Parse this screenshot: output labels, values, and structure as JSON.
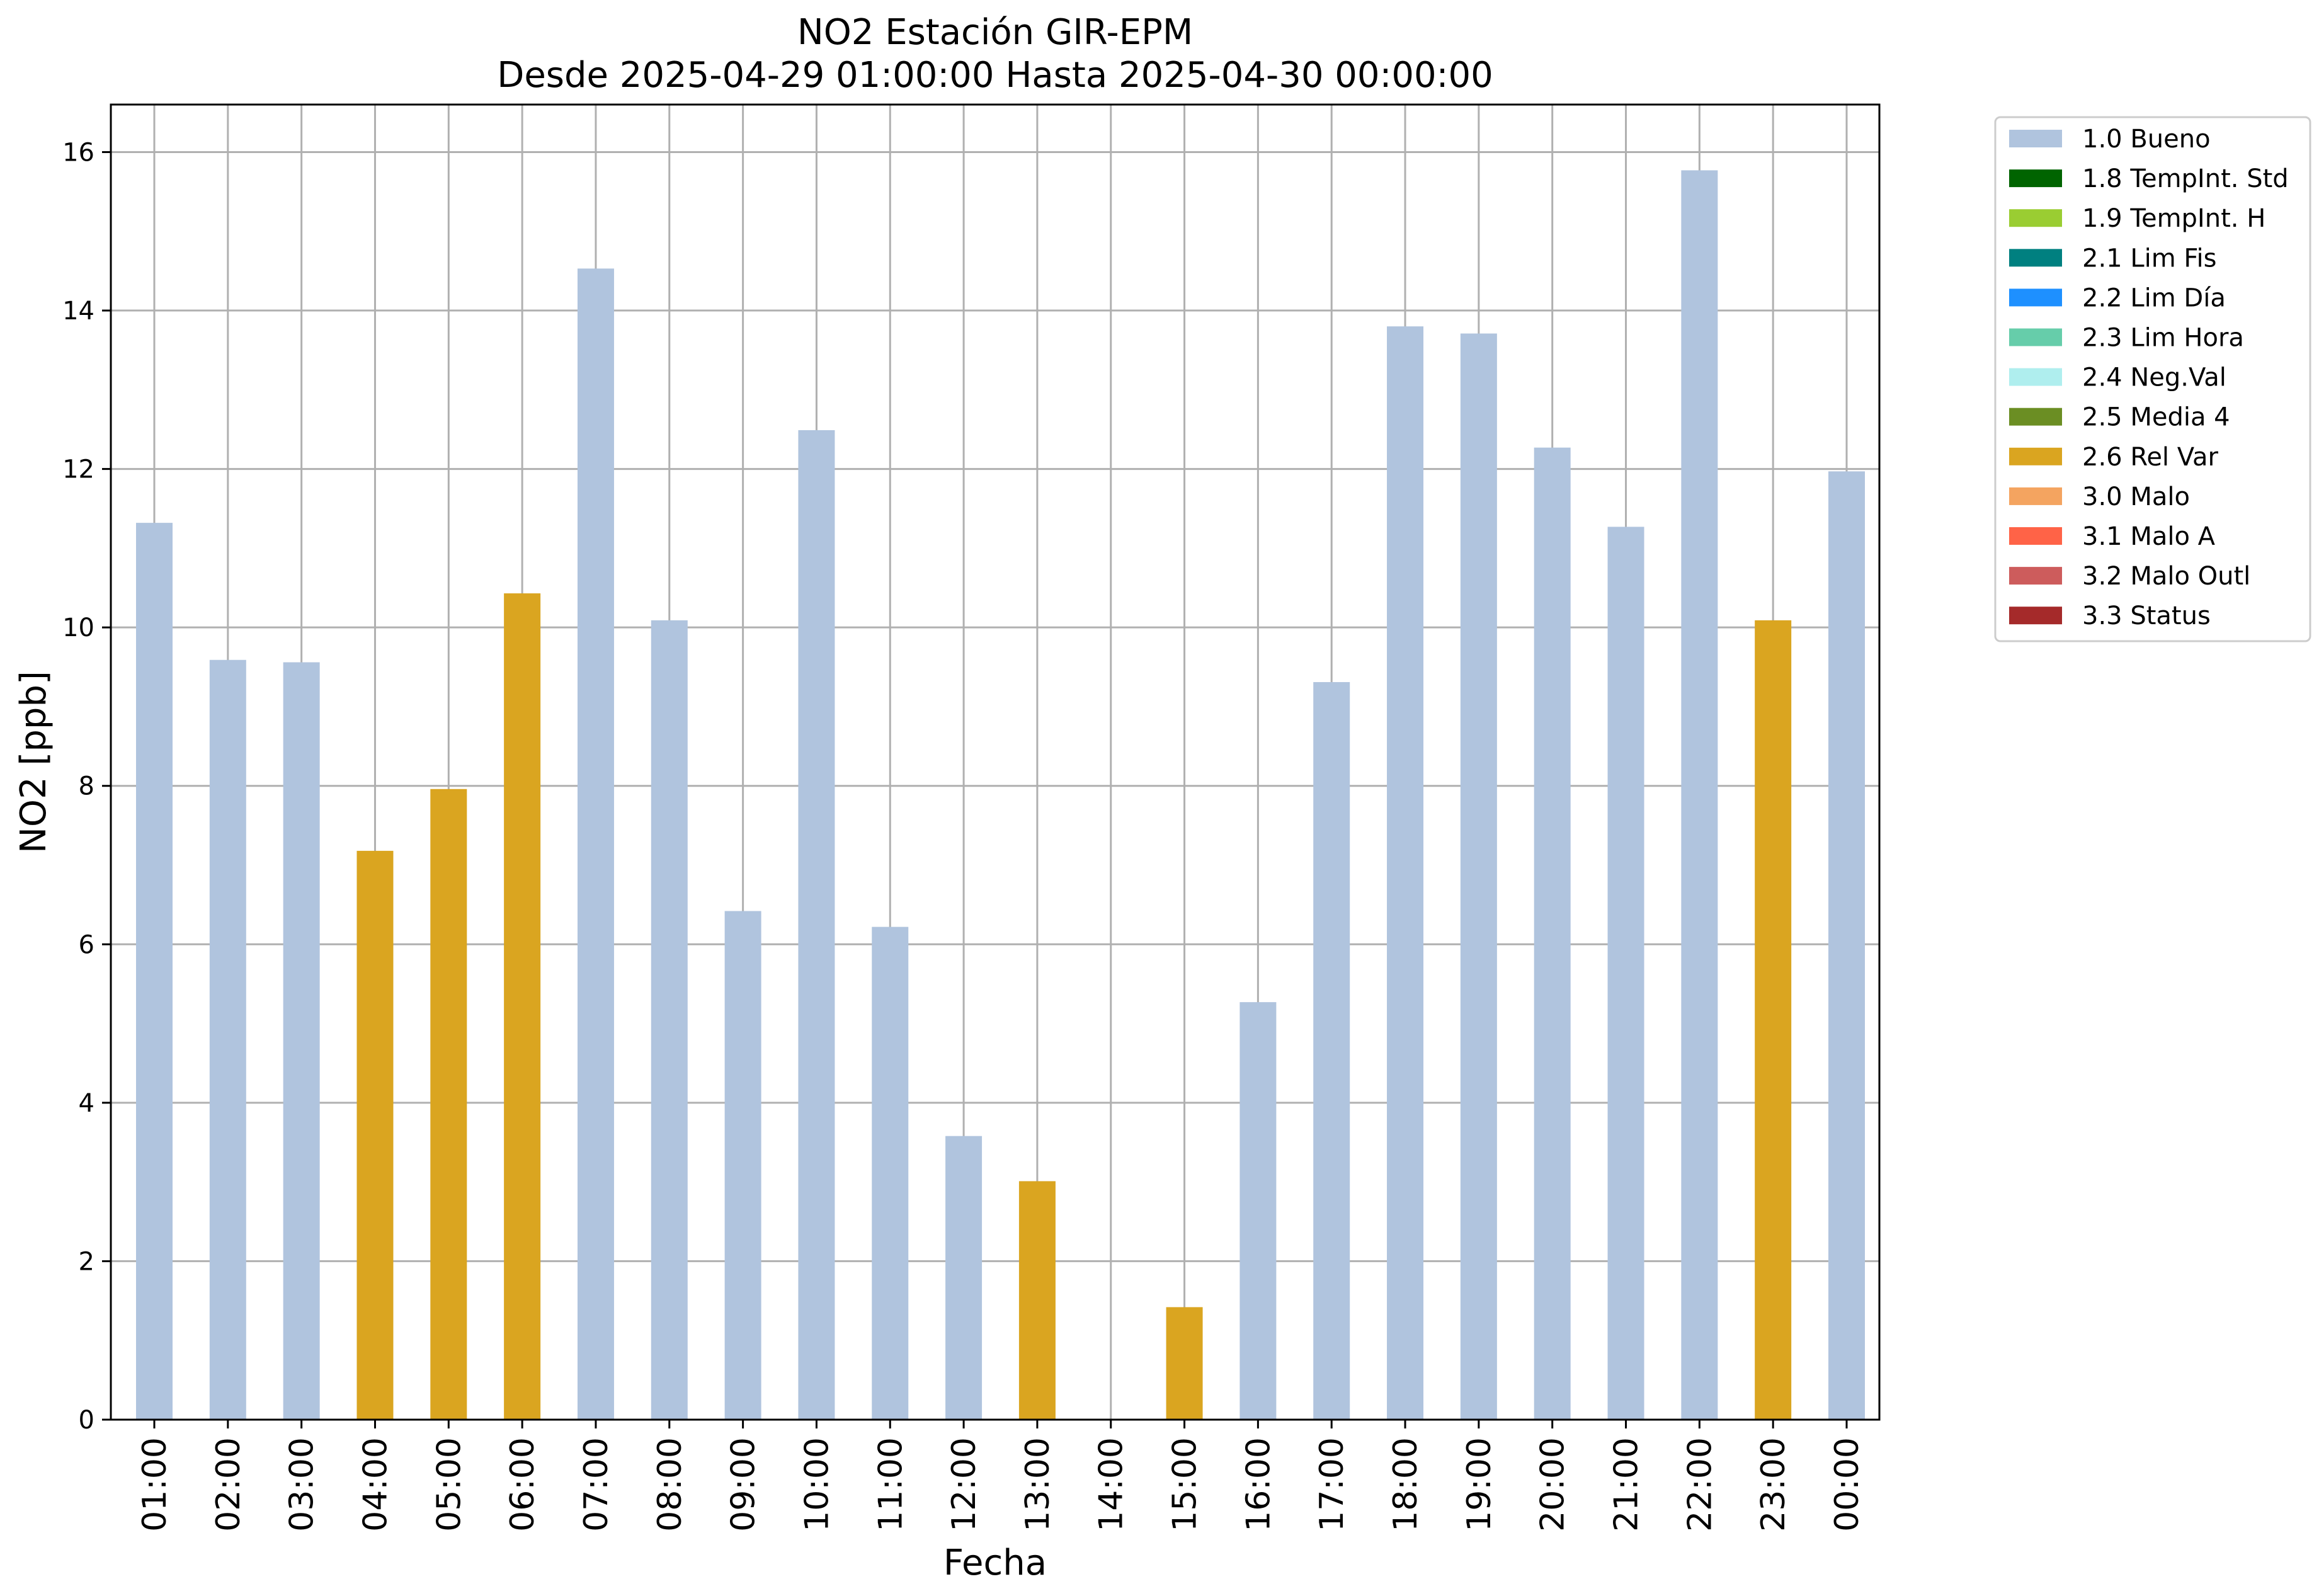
{
  "chart_data": {
    "type": "bar",
    "title": "NO2 Estación GIR-EPM",
    "subtitle": "Desde 2025-04-29 01:00:00 Hasta 2025-04-30 00:00:00",
    "xlabel": "Fecha",
    "ylabel": "NO2 [ppb]",
    "ylim": [
      0,
      16.6
    ],
    "yticks": [
      "0",
      "2",
      "4",
      "6",
      "8",
      "10",
      "12",
      "14",
      "16"
    ],
    "grid": true,
    "legend_position": "outside right, top",
    "categories": [
      "01:00",
      "02:00",
      "03:00",
      "04:00",
      "05:00",
      "06:00",
      "07:00",
      "08:00",
      "09:00",
      "10:00",
      "11:00",
      "12:00",
      "13:00",
      "14:00",
      "15:00",
      "16:00",
      "17:00",
      "18:00",
      "19:00",
      "20:00",
      "21:00",
      "22:00",
      "23:00",
      "00:00"
    ],
    "values": [
      11.32,
      9.59,
      9.56,
      7.18,
      7.96,
      10.43,
      14.53,
      10.09,
      6.42,
      12.49,
      6.22,
      3.58,
      3.01,
      null,
      1.42,
      5.27,
      9.31,
      13.8,
      13.71,
      12.27,
      11.27,
      15.77,
      10.09,
      11.97
    ],
    "flags": [
      "1.0 Bueno",
      "1.0 Bueno",
      "1.0 Bueno",
      "2.6 Rel Var",
      "2.6 Rel Var",
      "2.6 Rel Var",
      "1.0 Bueno",
      "1.0 Bueno",
      "1.0 Bueno",
      "1.0 Bueno",
      "1.0 Bueno",
      "1.0 Bueno",
      "2.6 Rel Var",
      null,
      "2.6 Rel Var",
      "1.0 Bueno",
      "1.0 Bueno",
      "1.0 Bueno",
      "1.0 Bueno",
      "1.0 Bueno",
      "1.0 Bueno",
      "1.0 Bueno",
      "2.6 Rel Var",
      "1.0 Bueno"
    ],
    "legend": [
      {
        "label": "1.0 Bueno",
        "color": "#b0c4de"
      },
      {
        "label": "1.8 TempInt. Std",
        "color": "#006400"
      },
      {
        "label": "1.9 TempInt. H",
        "color": "#9acd32"
      },
      {
        "label": "2.1 Lim Fis",
        "color": "#008080"
      },
      {
        "label": "2.2 Lim Día",
        "color": "#1e90ff"
      },
      {
        "label": "2.3 Lim Hora",
        "color": "#66cdaa"
      },
      {
        "label": "2.4 Neg.Val",
        "color": "#afeeee"
      },
      {
        "label": "2.5 Media 4",
        "color": "#6b8e23"
      },
      {
        "label": "2.6 Rel Var",
        "color": "#daa520"
      },
      {
        "label": "3.0 Malo",
        "color": "#f4a460"
      },
      {
        "label": "3.1 Malo A",
        "color": "#ff6347"
      },
      {
        "label": "3.2 Malo Outl",
        "color": "#cd5c5c"
      },
      {
        "label": "3.3 Status",
        "color": "#a52a2a"
      }
    ]
  }
}
